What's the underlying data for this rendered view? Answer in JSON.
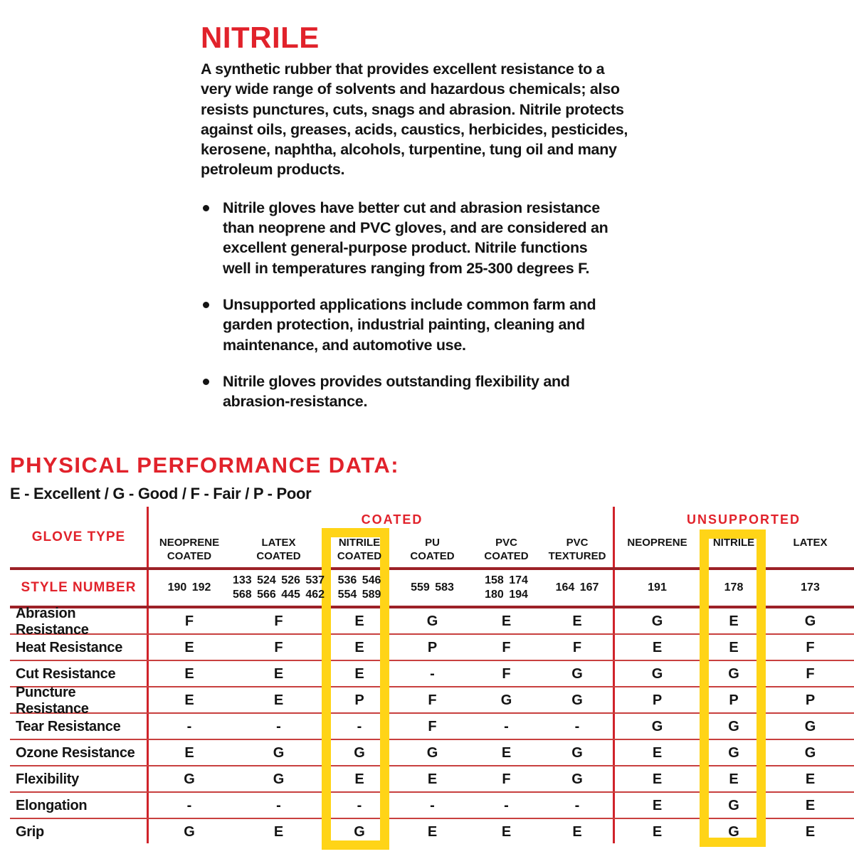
{
  "intro": {
    "title": "NITRILE",
    "paragraph": "A synthetic rubber that provides excellent resistance to a\nvery wide range of solvents and hazardous chemicals; also\nresists punctures, cuts, snags and abrasion. Nitrile protects\nagainst oils, greases, acids, caustics, herbicides, pesticides,\nkerosene, naphtha, alcohols, turpentine, tung oil and many\npetroleum products.",
    "bullets": [
      "Nitrile gloves have better cut and abrasion resistance\nthan neoprene and PVC gloves, and are considered an\nexcellent general-purpose product. Nitrile functions\nwell in temperatures ranging from 25-300 degrees F.",
      "Unsupported applications include common farm and\ngarden protection, industrial painting, cleaning and\nmaintenance, and automotive use.",
      "Nitrile gloves provides outstanding flexibility and\nabrasion-resistance."
    ]
  },
  "performance": {
    "heading": "PHYSICAL PERFORMANCE DATA:",
    "legend": "E - Excellent / G - Good / F - Fair / P - Poor",
    "colors": {
      "brand_red": "#e1222b",
      "thick_rule": "#9c2127",
      "thin_rule": "#c8403f",
      "vertical_rule": "#d0232a",
      "highlight_yellow": "#ffd417",
      "text_black": "#141414"
    },
    "table": {
      "corner_label": "GLOVE TYPE",
      "style_row_label": "STYLE NUMBER",
      "groups": [
        {
          "label": "COATED"
        },
        {
          "label": "UNSUPPORTED"
        }
      ],
      "columns": [
        {
          "label": "NEOPRENE\nCOATED",
          "styles": "190 192"
        },
        {
          "label": "LATEX\nCOATED",
          "styles": "133 524 526 537\n568 566 445 462"
        },
        {
          "label": "NITRILE\nCOATED",
          "styles": "536 546\n554 589",
          "highlighted": true
        },
        {
          "label": "PU\nCOATED",
          "styles": "559 583"
        },
        {
          "label": "PVC\nCOATED",
          "styles": "158 174\n180 194"
        },
        {
          "label": "PVC\nTEXTURED",
          "styles": "164 167"
        },
        {
          "label": "NEOPRENE",
          "styles": "191"
        },
        {
          "label": "NITRILE",
          "styles": "178",
          "highlighted": true
        },
        {
          "label": "LATEX",
          "styles": "173"
        }
      ],
      "rows": [
        {
          "label": "Abrasion Resistance",
          "values": [
            "F",
            "F",
            "E",
            "G",
            "E",
            "E",
            "G",
            "E",
            "G"
          ]
        },
        {
          "label": "Heat Resistance",
          "values": [
            "E",
            "F",
            "E",
            "P",
            "F",
            "F",
            "E",
            "E",
            "F"
          ]
        },
        {
          "label": "Cut Resistance",
          "values": [
            "E",
            "E",
            "E",
            "-",
            "F",
            "G",
            "G",
            "G",
            "F"
          ]
        },
        {
          "label": "Puncture Resistance",
          "values": [
            "E",
            "E",
            "P",
            "F",
            "G",
            "G",
            "P",
            "P",
            "P"
          ]
        },
        {
          "label": "Tear Resistance",
          "values": [
            "-",
            "-",
            "-",
            "F",
            "-",
            "-",
            "G",
            "G",
            "G"
          ]
        },
        {
          "label": "Ozone Resistance",
          "values": [
            "E",
            "G",
            "G",
            "G",
            "E",
            "G",
            "E",
            "G",
            "G"
          ]
        },
        {
          "label": "Flexibility",
          "values": [
            "G",
            "G",
            "E",
            "E",
            "F",
            "G",
            "E",
            "E",
            "E"
          ]
        },
        {
          "label": "Elongation",
          "values": [
            "-",
            "-",
            "-",
            "-",
            "-",
            "-",
            "E",
            "G",
            "E"
          ]
        },
        {
          "label": "Grip",
          "values": [
            "G",
            "E",
            "G",
            "E",
            "E",
            "E",
            "E",
            "G",
            "E"
          ]
        }
      ]
    }
  }
}
